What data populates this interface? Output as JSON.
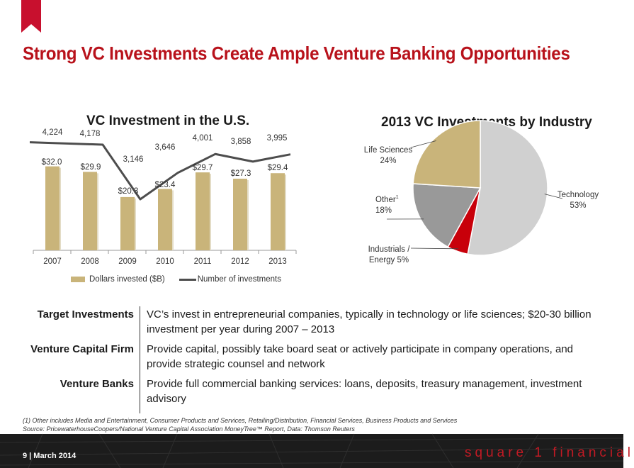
{
  "header": {
    "title": "Strong VC Investments Create Ample Venture Banking Opportunities"
  },
  "colors": {
    "accent": "#b8121b",
    "bar": "#c9b47a",
    "line": "#4d4d4d",
    "pie_technology": "#d0d0d0",
    "pie_life_sciences": "#c9b47a",
    "pie_other": "#999999",
    "pie_industrials": "#c8000a"
  },
  "chart_data": [
    {
      "type": "bar",
      "title": "VC Investment in the U.S.",
      "categories": [
        "2007",
        "2008",
        "2009",
        "2010",
        "2011",
        "2012",
        "2013"
      ],
      "series": [
        {
          "name": "Dollars invested ($B)",
          "kind": "bar",
          "values": [
            32.0,
            29.9,
            20.3,
            23.4,
            29.7,
            27.3,
            29.4
          ],
          "labels": [
            "$32.0",
            "$29.9",
            "$20.3",
            "$23.4",
            "$29.7",
            "$27.3",
            "$29.4"
          ]
        },
        {
          "name": "Number of investments",
          "kind": "line",
          "values": [
            4224,
            4178,
            3146,
            3646,
            4001,
            3858,
            3995
          ],
          "labels": [
            "4,224",
            "4,178",
            "3,146",
            "3,646",
            "4,001",
            "3,858",
            "3,995"
          ]
        }
      ],
      "xlabel": "",
      "ylabel": "",
      "ylim": [
        0,
        40
      ],
      "grid": false,
      "legend": "bottom"
    },
    {
      "type": "pie",
      "title": "2013 VC Investments by Industry",
      "slices": [
        {
          "name": "Technology",
          "label_lines": [
            "Technology",
            "53%"
          ],
          "value": 53
        },
        {
          "name": "Industrials / Energy",
          "label_lines": [
            "Industrials /",
            "Energy 5%"
          ],
          "value": 5
        },
        {
          "name": "Other",
          "label_lines": [
            "Other",
            "18%"
          ],
          "sup": "1",
          "value": 18
        },
        {
          "name": "Life Sciences",
          "label_lines": [
            "Life Sciences",
            "24%"
          ],
          "value": 24
        }
      ]
    }
  ],
  "info_rows": [
    {
      "label": "Target Investments",
      "text": "VC’s invest in entrepreneurial companies, typically in technology or life sciences; $20-30 billion investment per year during 2007 – 2013"
    },
    {
      "label": "Venture Capital Firm",
      "text": "Provide capital, possibly take board seat or actively participate in company operations, and provide strategic counsel and network"
    },
    {
      "label": "Venture Banks",
      "text": "Provide full commercial banking services:  loans, deposits, treasury management, investment advisory"
    }
  ],
  "footnote": {
    "line1": "(1) Other includes Media and Entertainment, Consumer Products and Services, Retailing/Distribution, Financial Services, Business Products and Services",
    "line2": "Source: PricewaterhouseCoopers/National Venture Capital Association MoneyTree™ Report, Data: Thomson Reuters"
  },
  "footer": {
    "page_info": "9  |  March 2014",
    "brand": "square 1 financial"
  }
}
